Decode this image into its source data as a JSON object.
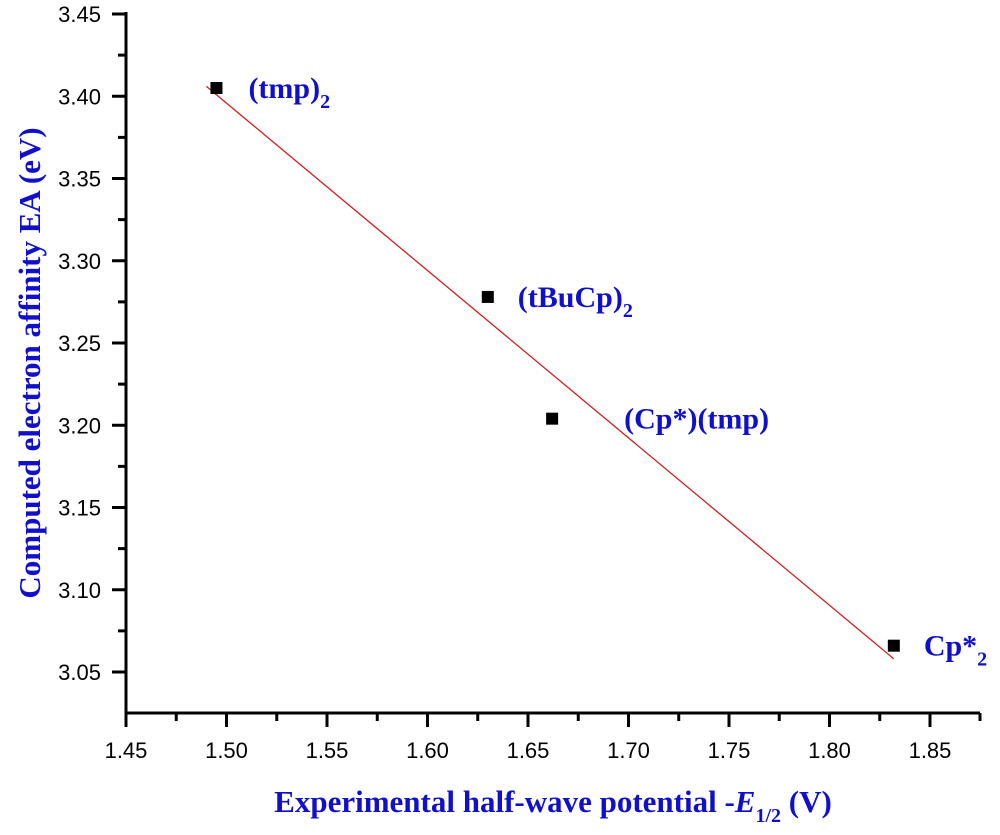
{
  "chart_data": {
    "type": "scatter",
    "xlabel": {
      "main": "Experimental half-wave potential -",
      "italic": "E",
      "subscript": "1/2",
      "suffix": " (V)"
    },
    "ylabel": "Computed electron affinity EA (eV)",
    "xlim": [
      1.45,
      1.875
    ],
    "ylim": [
      3.025,
      3.45
    ],
    "xticks": [
      "1.45",
      "1.50",
      "1.55",
      "1.60",
      "1.65",
      "1.70",
      "1.75",
      "1.80",
      "1.85"
    ],
    "yticks": [
      "3.05",
      "3.10",
      "3.15",
      "3.20",
      "3.25",
      "3.30",
      "3.35",
      "3.40",
      "3.45"
    ],
    "grid": false,
    "points": [
      {
        "label": "(tmp)",
        "sub": "2",
        "x": 1.495,
        "y": 3.405
      },
      {
        "label": "(tBuCp)",
        "sub": "2",
        "x": 1.63,
        "y": 3.278
      },
      {
        "label": "(Cp*)(tmp)",
        "sub": "",
        "x": 1.662,
        "y": 3.204
      },
      {
        "label": "Cp*",
        "sub": "2",
        "x": 1.832,
        "y": 3.066
      }
    ],
    "fit_line": {
      "x": [
        1.49,
        1.832
      ],
      "y": [
        3.406,
        3.058
      ],
      "color": "#cc2222"
    },
    "marker_color": "#000000",
    "label_color": "#1010cc"
  }
}
